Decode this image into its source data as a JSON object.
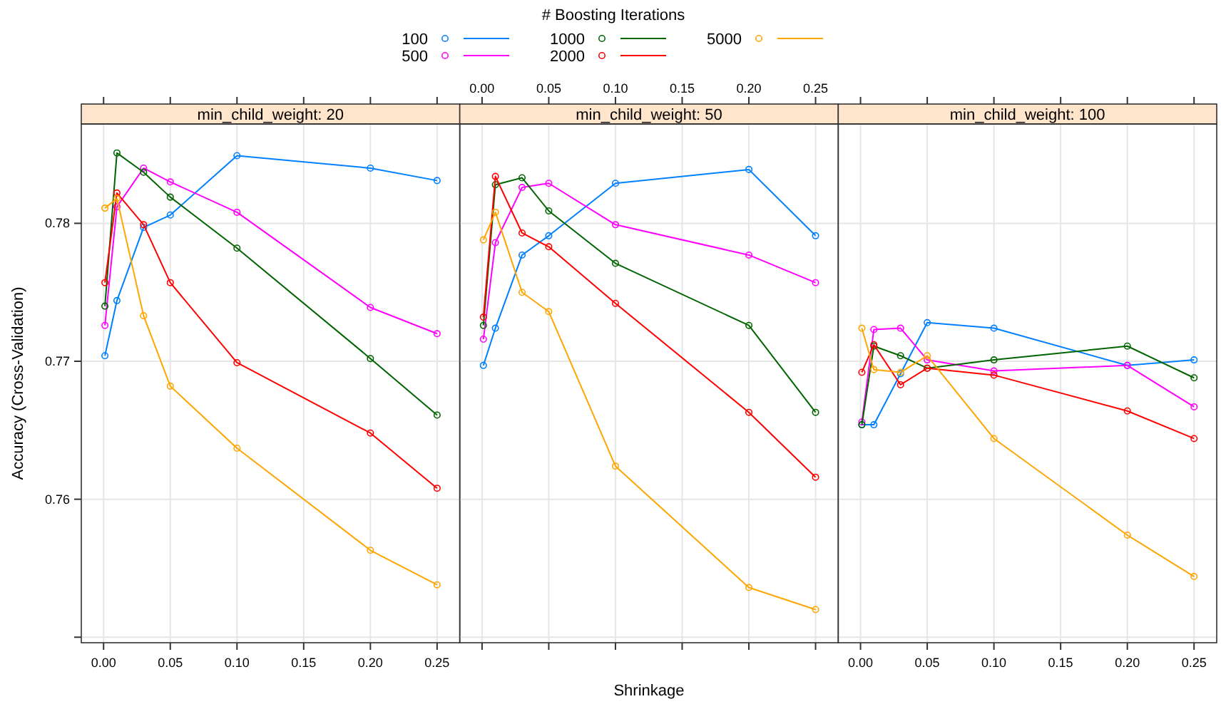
{
  "chart_data": [
    {
      "type": "line",
      "title": "min_child_weight: 20",
      "ylabel": "Accuracy (Cross-Validation)",
      "legend_title": "# Boosting Iterations",
      "legend": "top",
      "marker": "circle",
      "grid": true,
      "x": [
        0.001,
        0.01,
        0.03,
        0.05,
        0.1,
        0.2,
        0.25
      ],
      "xlim": [
        -0.0167,
        0.267
      ],
      "xticks": [
        {
          "value": 0,
          "label": "0.00"
        },
        0.05,
        {
          "value": 0.1,
          "label": "0.10"
        },
        0.15,
        {
          "value": 0.2,
          "label": "0.20"
        },
        0.25
      ],
      "ylim": [
        0.7496,
        0.7872
      ],
      "yticks": [
        {
          "value": 0.75,
          "label": null
        },
        0.76,
        0.77,
        0.78
      ],
      "series": [
        {
          "name": "100",
          "color": "#0080ff",
          "values": [
            0.7704,
            0.7744,
            0.7797,
            0.7806,
            0.7849,
            0.784,
            0.7831
          ]
        },
        {
          "name": "500",
          "color": "#ff00ff",
          "values": [
            0.7726,
            0.7812,
            0.784,
            0.783,
            0.7808,
            0.7739,
            0.772
          ]
        },
        {
          "name": "1000",
          "color": "#006400",
          "values": [
            0.774,
            0.7851,
            0.7837,
            0.7819,
            0.7782,
            0.7702,
            0.7661
          ]
        },
        {
          "name": "2000",
          "color": "#ff0000",
          "values": [
            0.7757,
            0.7822,
            0.7799,
            0.7757,
            0.7699,
            0.7648,
            0.7608
          ]
        },
        {
          "name": "5000",
          "color": "#ffa500",
          "values": [
            0.7811,
            0.7818,
            0.7733,
            0.7682,
            0.7637,
            0.7563,
            0.7538
          ]
        }
      ]
    },
    {
      "type": "line",
      "title": "min_child_weight: 50",
      "xlabel": "Shrinkage",
      "marker": "circle",
      "grid": true,
      "tick_labels": "x",
      "x": [
        0.001,
        0.01,
        0.03,
        0.05,
        0.1,
        0.2,
        0.25
      ],
      "xlim": [
        -0.0167,
        0.267
      ],
      "xticks": [
        {
          "value": 0,
          "label": "0.00"
        },
        0.05,
        {
          "value": 0.1,
          "label": "0.10"
        },
        0.15,
        {
          "value": 0.2,
          "label": "0.20"
        },
        0.25
      ],
      "ylim": [
        0.7496,
        0.7872
      ],
      "yticks": [
        0.75,
        0.76,
        0.77,
        0.78
      ],
      "series": [
        {
          "color": "#0080ff",
          "values": [
            0.7697,
            0.7724,
            0.7777,
            0.7791,
            0.7829,
            0.7839,
            0.7791
          ]
        },
        {
          "color": "#ff00ff",
          "values": [
            0.7716,
            0.7786,
            0.7826,
            0.7829,
            0.7799,
            0.7777,
            0.7757
          ]
        },
        {
          "color": "#006400",
          "values": [
            0.7726,
            0.7828,
            0.7833,
            0.7809,
            0.7771,
            0.7726,
            0.7663
          ]
        },
        {
          "color": "#ff0000",
          "values": [
            0.7732,
            0.7834,
            0.7793,
            0.7783,
            0.7742,
            0.7663,
            0.7616
          ]
        },
        {
          "color": "#ffa500",
          "values": [
            0.7788,
            0.7808,
            0.775,
            0.7736,
            0.7624,
            0.7536,
            0.752
          ]
        }
      ]
    },
    {
      "type": "line",
      "title": "min_child_weight: 100",
      "marker": "circle",
      "grid": true,
      "tick_labels": "x",
      "x": [
        0.001,
        0.01,
        0.03,
        0.05,
        0.1,
        0.2,
        0.25
      ],
      "xlim": [
        -0.0167,
        0.267
      ],
      "xticks": [
        {
          "value": 0,
          "label": "0.00"
        },
        0.05,
        {
          "value": 0.1,
          "label": "0.10"
        },
        0.15,
        {
          "value": 0.2,
          "label": "0.20"
        },
        0.25
      ],
      "ylim": [
        0.7496,
        0.7872
      ],
      "yticks": [
        0.75,
        0.76,
        0.77,
        0.78
      ],
      "series": [
        {
          "color": "#0080ff",
          "values": [
            0.7654,
            0.7654,
            0.7691,
            0.7728,
            0.7724,
            0.7697,
            0.7701
          ]
        },
        {
          "color": "#ff00ff",
          "values": [
            0.7656,
            0.7723,
            0.7724,
            0.7701,
            0.7693,
            0.7697,
            0.7667
          ]
        },
        {
          "color": "#006400",
          "values": [
            0.7654,
            0.7711,
            0.7704,
            0.7695,
            0.7701,
            0.7711,
            0.7688
          ]
        },
        {
          "color": "#ff0000",
          "values": [
            0.7692,
            0.7712,
            0.7683,
            0.7695,
            0.769,
            0.7664,
            0.7644
          ]
        },
        {
          "color": "#ffa500",
          "values": [
            0.7724,
            0.7694,
            0.7692,
            0.7704,
            0.7644,
            0.7574,
            0.7544
          ]
        }
      ]
    }
  ]
}
